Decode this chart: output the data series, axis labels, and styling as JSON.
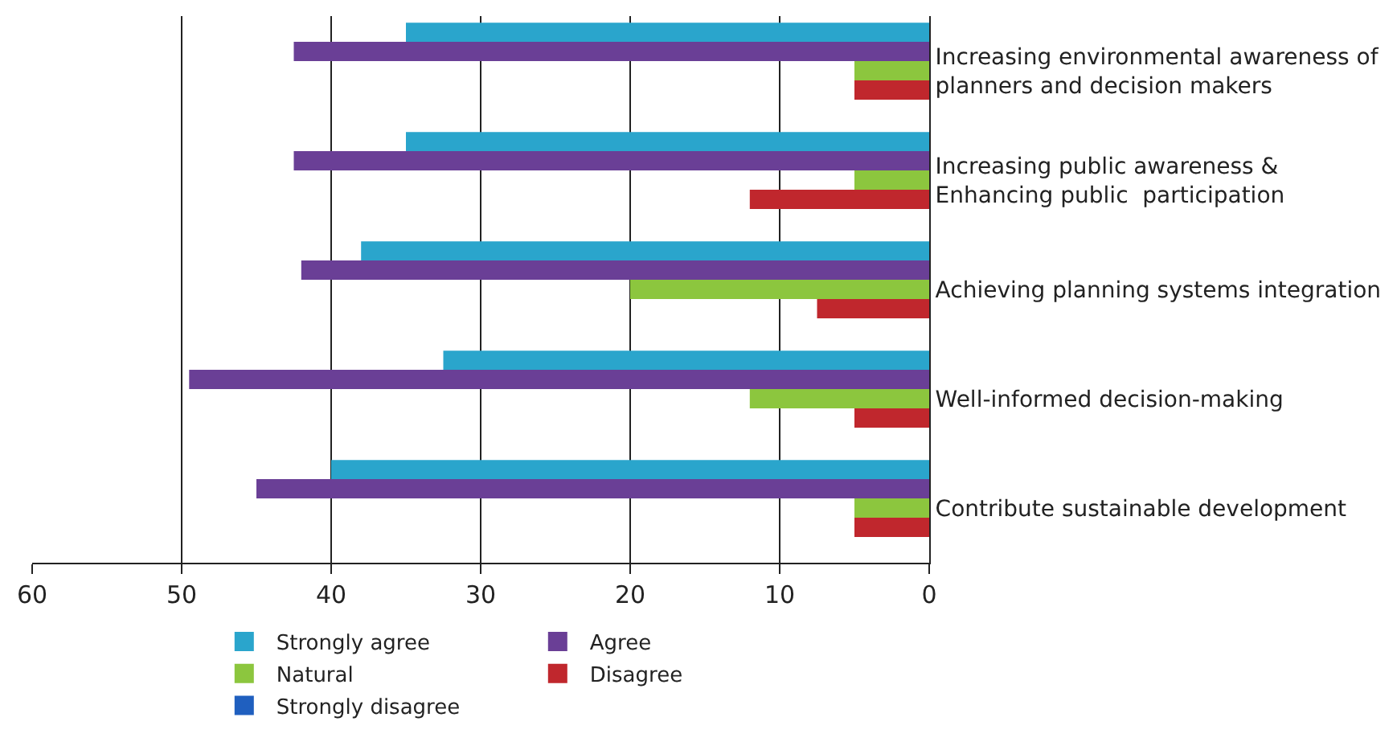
{
  "chart_data": {
    "type": "bar",
    "orientation": "horizontal",
    "categories": [
      "Increasing environmental awareness of planners and decision makers",
      "Increasing public awareness & Enhancing public  participation",
      "Achieving planning systems integration",
      "Well-informed decision-making",
      "Contribute sustainable development"
    ],
    "series": [
      {
        "name": "Strongly agree",
        "color": "#2aa5cc",
        "values": [
          35,
          35,
          38,
          32.5,
          40
        ]
      },
      {
        "name": "Agree",
        "color": "#6a3f96",
        "values": [
          42.5,
          42.5,
          42,
          49.5,
          45
        ]
      },
      {
        "name": "Natural",
        "color": "#8cc63e",
        "values": [
          5,
          5,
          20,
          12,
          5
        ]
      },
      {
        "name": "Disagree",
        "color": "#c0272d",
        "values": [
          5,
          12,
          7.5,
          5,
          5
        ]
      },
      {
        "name": "Strongly disagree",
        "color": "#1f5fbf",
        "values": [
          0,
          0,
          0,
          0,
          0
        ]
      }
    ],
    "xlim": [
      60,
      0
    ],
    "xticks": [
      60,
      50,
      40,
      30,
      20,
      10,
      0
    ],
    "grid": "x",
    "legend": "bottom"
  }
}
